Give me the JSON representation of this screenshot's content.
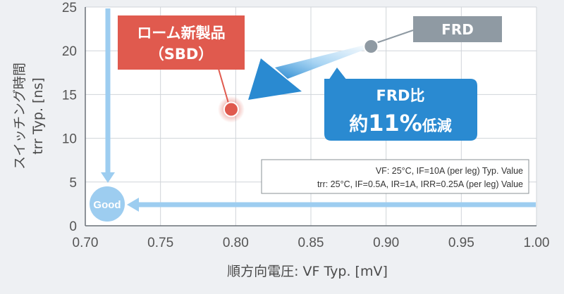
{
  "chart_data": {
    "type": "scatter",
    "xlabel": "順方向電圧: VF Typ. [mV]",
    "ylabel_line1": "スイッチング時間",
    "ylabel_line2": "trr Typ. [ns]",
    "xlim": [
      0.7,
      1.0
    ],
    "ylim": [
      0,
      25
    ],
    "grid": true,
    "x_ticks": [
      "0.70",
      "0.75",
      "0.80",
      "0.85",
      "0.90",
      "0.95",
      "1.00"
    ],
    "y_ticks": [
      "0",
      "5",
      "10",
      "15",
      "20",
      "25"
    ],
    "points": [
      {
        "name": "ローム新製品 (SBD)",
        "x": 0.797,
        "y": 13.3,
        "color": "#e05a4e"
      },
      {
        "name": "FRD",
        "x": 0.89,
        "y": 20.5,
        "color": "#8f9aa3"
      }
    ],
    "annotations": {
      "sbd_label_line1": "ローム新製品",
      "sbd_label_line2": "（SBD）",
      "frd_label": "FRD",
      "compare_line1": "FRD比",
      "compare_line2_prefix": "約",
      "compare_line2_value": "11%",
      "compare_line2_suffix": "低減",
      "good_label": "Good",
      "note_line1": "VF: 25°C, IF=10A (per leg) Typ. Value",
      "note_line2": "trr: 25°C, IF=0.5A, IR=1A, IRR=0.25A (per leg) Value"
    },
    "colors": {
      "sbd": "#e05a4e",
      "frd": "#8f9aa3",
      "arrow_blue": "#2a8ad1",
      "light_blue": "#9dcdf0",
      "grid": "#d0d4d9"
    }
  }
}
